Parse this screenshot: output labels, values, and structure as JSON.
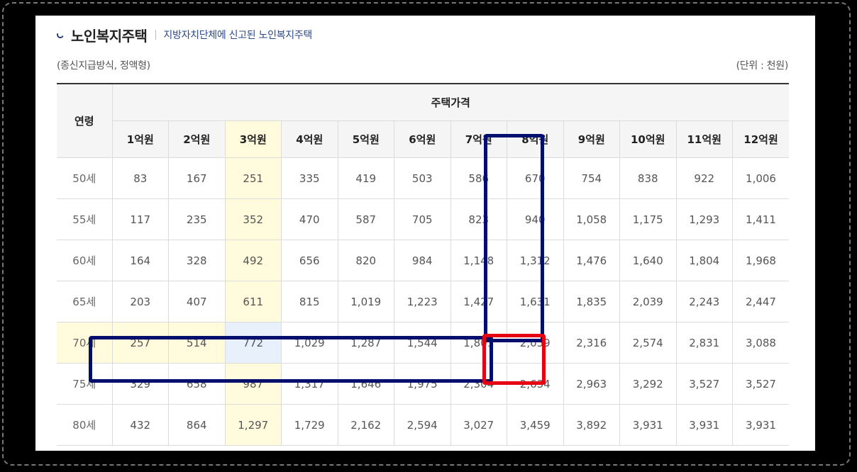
{
  "header": {
    "title": "노인복지주택",
    "subtitle": "지방자치단체에 신고된 노인복지주택"
  },
  "notes": {
    "left": "(종신지급방식, 정액형)",
    "right": "(단위 : 천원)"
  },
  "table": {
    "age_header": "연령",
    "group_header": "주택가격",
    "columns": [
      "1억원",
      "2억원",
      "3억원",
      "4억원",
      "5억원",
      "6억원",
      "7억원",
      "8억원",
      "9억원",
      "10억원",
      "11억원",
      "12억원"
    ],
    "rows": [
      {
        "age": "50세",
        "values": [
          "83",
          "167",
          "251",
          "335",
          "419",
          "503",
          "586",
          "670",
          "754",
          "838",
          "922",
          "1,006"
        ]
      },
      {
        "age": "55세",
        "values": [
          "117",
          "235",
          "352",
          "470",
          "587",
          "705",
          "823",
          "940",
          "1,058",
          "1,175",
          "1,293",
          "1,411"
        ]
      },
      {
        "age": "60세",
        "values": [
          "164",
          "328",
          "492",
          "656",
          "820",
          "984",
          "1,148",
          "1,312",
          "1,476",
          "1,640",
          "1,804",
          "1,968"
        ]
      },
      {
        "age": "65세",
        "values": [
          "203",
          "407",
          "611",
          "815",
          "1,019",
          "1,223",
          "1,427",
          "1,631",
          "1,835",
          "2,039",
          "2,243",
          "2,447"
        ]
      },
      {
        "age": "70세",
        "values": [
          "257",
          "514",
          "772",
          "1,029",
          "1,287",
          "1,544",
          "1,801",
          "2,059",
          "2,316",
          "2,574",
          "2,831",
          "3,088"
        ]
      },
      {
        "age": "75세",
        "values": [
          "329",
          "658",
          "987",
          "1,317",
          "1,646",
          "1,975",
          "2,304",
          "2,634",
          "2,963",
          "3,292",
          "3,527",
          "3,527"
        ]
      },
      {
        "age": "80세",
        "values": [
          "432",
          "864",
          "1,297",
          "1,729",
          "2,162",
          "2,594",
          "3,027",
          "3,459",
          "3,892",
          "3,931",
          "3,931",
          "3,931"
        ]
      }
    ]
  },
  "highlight_colors": {
    "column_3억원": "#fffbdc",
    "row_70세": "#fffbdc",
    "cell_70세_3억원": "#e8f1fb",
    "box_navy": "#000f6e",
    "box_red": "#e60012"
  }
}
